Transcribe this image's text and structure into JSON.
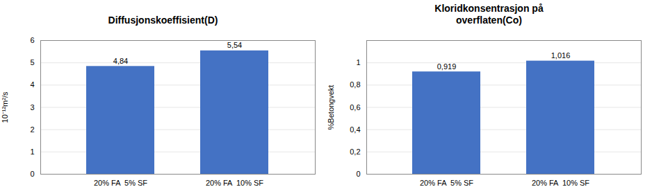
{
  "chart_data": [
    {
      "type": "bar",
      "title": "Diffusjonskoeffisient(D)",
      "categories": [
        "20% FA  5% SF",
        "20% FA  10% SF"
      ],
      "values": [
        4.84,
        5.54
      ],
      "value_labels": [
        "4,84",
        "5,54"
      ],
      "ylabel": "10⁻¹²m²/s",
      "ylim": [
        0,
        6
      ],
      "yticks": [
        0,
        1,
        2,
        3,
        4,
        5,
        6
      ],
      "color": "#4472C4",
      "grid": true,
      "data_labels": true
    },
    {
      "type": "bar",
      "title": "Kloridkonsentrasjon på\noverflaten(Co)",
      "categories": [
        "20% FA  5% SF",
        "20% FA  10% SF"
      ],
      "values": [
        0.919,
        1.016
      ],
      "value_labels": [
        "0,919",
        "1,016"
      ],
      "ylabel": "%Betongvekt",
      "ylim": [
        0,
        1.2
      ],
      "yticks": [
        0,
        {
          "value": 0.2,
          "label": "0,2"
        },
        {
          "value": 0.4,
          "label": "0,4"
        },
        {
          "value": 0.6,
          "label": "0,6"
        },
        {
          "value": 0.8,
          "label": "0,8"
        },
        1
      ],
      "color": "#4472C4",
      "grid": true,
      "data_labels": true
    }
  ]
}
